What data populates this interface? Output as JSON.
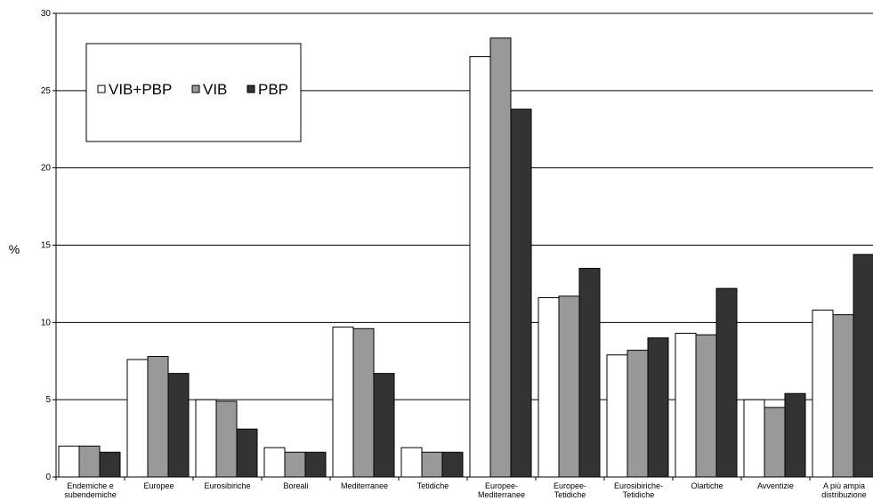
{
  "chart_data": {
    "type": "bar",
    "title": "",
    "xlabel": "",
    "ylabel": "%",
    "ylim": [
      0,
      30
    ],
    "yticks": [
      0,
      5,
      10,
      15,
      20,
      25,
      30
    ],
    "grid": true,
    "legend_position": "top-left",
    "categories": [
      [
        "Endemiche e",
        "subendemiche"
      ],
      [
        "Europee"
      ],
      [
        "Eurosibiriche"
      ],
      [
        "Boreali"
      ],
      [
        "Mediterranee"
      ],
      [
        "Tetidiche"
      ],
      [
        "Europee-",
        "Mediterranee"
      ],
      [
        "Europee-",
        "Tetidiche"
      ],
      [
        "Eurosibiriche-",
        "Tetidiche"
      ],
      [
        "Olartiche"
      ],
      [
        "Avventizie"
      ],
      [
        "A più ampia",
        "distribuzione"
      ]
    ],
    "series": [
      {
        "name": "VIB+PBP",
        "color": "#ffffff",
        "values": [
          2.0,
          7.6,
          5.0,
          1.9,
          9.7,
          1.9,
          27.2,
          11.6,
          7.9,
          9.3,
          5.0,
          10.8
        ]
      },
      {
        "name": "VIB",
        "color": "#999999",
        "values": [
          2.0,
          7.8,
          4.9,
          1.6,
          9.6,
          1.6,
          28.4,
          11.7,
          8.2,
          9.2,
          4.5,
          10.5
        ]
      },
      {
        "name": "PBP",
        "color": "#333333",
        "values": [
          1.6,
          6.7,
          3.1,
          1.6,
          6.7,
          1.6,
          23.8,
          13.5,
          9.0,
          12.2,
          5.4,
          14.4
        ]
      }
    ]
  }
}
